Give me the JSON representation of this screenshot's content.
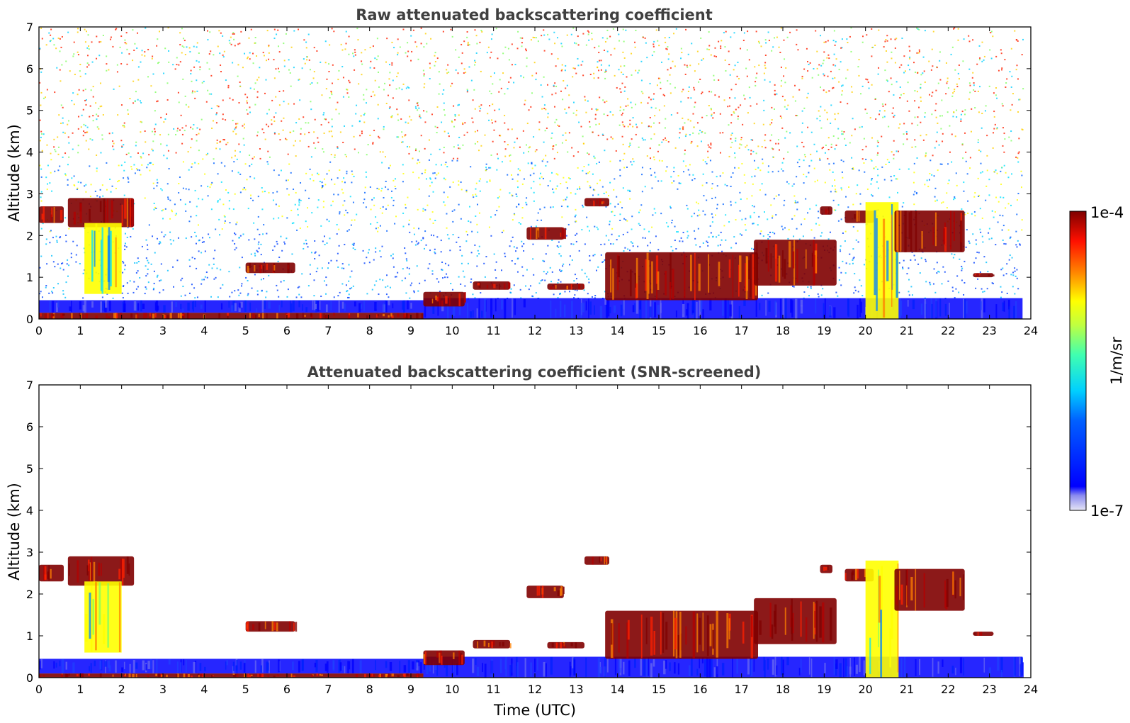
{
  "chart_data": [
    {
      "type": "heatmap",
      "title": "Raw attenuated backscattering coefficient",
      "xlabel": "",
      "ylabel": "Altitude (km)",
      "xlim": [
        0,
        24
      ],
      "ylim": [
        0,
        7
      ],
      "xticks": [
        "0",
        "1",
        "2",
        "3",
        "4",
        "5",
        "6",
        "7",
        "8",
        "9",
        "10",
        "11",
        "12",
        "13",
        "14",
        "15",
        "16",
        "17",
        "18",
        "19",
        "20",
        "21",
        "22",
        "23",
        "24"
      ],
      "yticks": [
        "0",
        "1",
        "2",
        "3",
        "4",
        "5",
        "6",
        "7"
      ],
      "data_end_hour": 23.8,
      "features": [
        {
          "kind": "boundary_layer",
          "x": [
            0,
            9.3
          ],
          "y": [
            0,
            0.15
          ],
          "value": "high"
        },
        {
          "kind": "aerosol_layer",
          "x": [
            0,
            9.3
          ],
          "y": [
            0.15,
            0.45
          ],
          "value": "low"
        },
        {
          "kind": "noise_floor",
          "x": [
            9.3,
            23.8
          ],
          "y": [
            0,
            0.5
          ],
          "value": "low"
        },
        {
          "kind": "cloud",
          "x": [
            0,
            0.6
          ],
          "y": [
            2.3,
            2.7
          ],
          "value": "high"
        },
        {
          "kind": "cloud",
          "x": [
            0.7,
            2.3
          ],
          "y": [
            2.2,
            2.9
          ],
          "value": "high"
        },
        {
          "kind": "precipitation",
          "x": [
            1.1,
            2.0
          ],
          "y": [
            0.6,
            2.3
          ],
          "value": "mid"
        },
        {
          "kind": "cloud",
          "x": [
            5.0,
            6.2
          ],
          "y": [
            1.1,
            1.35
          ],
          "value": "high"
        },
        {
          "kind": "cloud",
          "x": [
            9.3,
            10.3
          ],
          "y": [
            0.3,
            0.65
          ],
          "value": "high"
        },
        {
          "kind": "cloud",
          "x": [
            10.5,
            11.4
          ],
          "y": [
            0.7,
            0.9
          ],
          "value": "high"
        },
        {
          "kind": "cloud",
          "x": [
            11.8,
            12.7
          ],
          "y": [
            1.9,
            2.2
          ],
          "value": "high"
        },
        {
          "kind": "cloud",
          "x": [
            12.3,
            13.2
          ],
          "y": [
            0.7,
            0.85
          ],
          "value": "high"
        },
        {
          "kind": "cloud",
          "x": [
            13.2,
            13.8
          ],
          "y": [
            2.7,
            2.9
          ],
          "value": "high"
        },
        {
          "kind": "cloud",
          "x": [
            13.7,
            17.4
          ],
          "y": [
            0.45,
            1.6
          ],
          "value": "high"
        },
        {
          "kind": "cloud",
          "x": [
            17.3,
            19.3
          ],
          "y": [
            0.8,
            1.9
          ],
          "value": "high"
        },
        {
          "kind": "cloud",
          "x": [
            18.9,
            19.2
          ],
          "y": [
            2.5,
            2.7
          ],
          "value": "high"
        },
        {
          "kind": "cloud",
          "x": [
            19.5,
            20.2
          ],
          "y": [
            2.3,
            2.6
          ],
          "value": "high"
        },
        {
          "kind": "precipitation",
          "x": [
            20.0,
            20.8
          ],
          "y": [
            0,
            2.8
          ],
          "value": "mid"
        },
        {
          "kind": "cloud",
          "x": [
            20.7,
            22.4
          ],
          "y": [
            1.6,
            2.6
          ],
          "value": "high"
        },
        {
          "kind": "cloud",
          "x": [
            22.6,
            23.1
          ],
          "y": [
            1.0,
            1.1
          ],
          "value": "high"
        }
      ]
    },
    {
      "type": "heatmap",
      "title": "Attenuated backscattering coefficient (SNR-screened)",
      "xlabel": "Time (UTC)",
      "ylabel": "Altitude (km)",
      "xlim": [
        0,
        24
      ],
      "ylim": [
        0,
        7
      ],
      "xticks": [
        "0",
        "1",
        "2",
        "3",
        "4",
        "5",
        "6",
        "7",
        "8",
        "9",
        "10",
        "11",
        "12",
        "13",
        "14",
        "15",
        "16",
        "17",
        "18",
        "19",
        "20",
        "21",
        "22",
        "23",
        "24"
      ],
      "yticks": [
        "0",
        "1",
        "2",
        "3",
        "4",
        "5",
        "6",
        "7"
      ],
      "data_end_hour": 23.8,
      "features": [
        {
          "kind": "boundary_layer",
          "x": [
            0,
            9.3
          ],
          "y": [
            0,
            0.1
          ],
          "value": "high"
        },
        {
          "kind": "aerosol_layer",
          "x": [
            0,
            9.3
          ],
          "y": [
            0.1,
            0.45
          ],
          "value": "low"
        },
        {
          "kind": "aerosol_layer",
          "x": [
            9.3,
            23.8
          ],
          "y": [
            0,
            0.5
          ],
          "value": "low"
        },
        {
          "kind": "cloud",
          "x": [
            0,
            0.6
          ],
          "y": [
            2.3,
            2.7
          ],
          "value": "high"
        },
        {
          "kind": "cloud",
          "x": [
            0.7,
            2.3
          ],
          "y": [
            2.2,
            2.9
          ],
          "value": "high"
        },
        {
          "kind": "precipitation",
          "x": [
            1.1,
            2.0
          ],
          "y": [
            0.6,
            2.3
          ],
          "value": "mid"
        },
        {
          "kind": "cloud",
          "x": [
            5.0,
            6.2
          ],
          "y": [
            1.1,
            1.35
          ],
          "value": "high"
        },
        {
          "kind": "cloud",
          "x": [
            9.3,
            10.3
          ],
          "y": [
            0.3,
            0.65
          ],
          "value": "high"
        },
        {
          "kind": "cloud",
          "x": [
            10.5,
            11.4
          ],
          "y": [
            0.7,
            0.9
          ],
          "value": "high"
        },
        {
          "kind": "cloud",
          "x": [
            11.8,
            12.7
          ],
          "y": [
            1.9,
            2.2
          ],
          "value": "high"
        },
        {
          "kind": "cloud",
          "x": [
            12.3,
            13.2
          ],
          "y": [
            0.7,
            0.85
          ],
          "value": "high"
        },
        {
          "kind": "cloud",
          "x": [
            13.2,
            13.8
          ],
          "y": [
            2.7,
            2.9
          ],
          "value": "high"
        },
        {
          "kind": "cloud",
          "x": [
            13.7,
            17.4
          ],
          "y": [
            0.45,
            1.6
          ],
          "value": "high"
        },
        {
          "kind": "cloud",
          "x": [
            17.3,
            19.3
          ],
          "y": [
            0.8,
            1.9
          ],
          "value": "high"
        },
        {
          "kind": "cloud",
          "x": [
            18.9,
            19.2
          ],
          "y": [
            2.5,
            2.7
          ],
          "value": "high"
        },
        {
          "kind": "cloud",
          "x": [
            19.5,
            20.2
          ],
          "y": [
            2.3,
            2.6
          ],
          "value": "high"
        },
        {
          "kind": "precipitation",
          "x": [
            20.0,
            20.8
          ],
          "y": [
            0,
            2.8
          ],
          "value": "mid"
        },
        {
          "kind": "cloud",
          "x": [
            20.7,
            22.4
          ],
          "y": [
            1.6,
            2.6
          ],
          "value": "high"
        },
        {
          "kind": "cloud",
          "x": [
            22.6,
            23.1
          ],
          "y": [
            1.0,
            1.1
          ],
          "value": "high"
        }
      ]
    }
  ],
  "colorbar": {
    "max_label": "1e-4",
    "min_label": "1e-7",
    "unit_label": "1/m/sr",
    "colormap": [
      "#00007f",
      "#0000ff",
      "#007fff",
      "#00ffff",
      "#7fff7f",
      "#ffff00",
      "#ff7f00",
      "#ff0000",
      "#7f0000"
    ],
    "low_fade": "#e6e6f5"
  }
}
